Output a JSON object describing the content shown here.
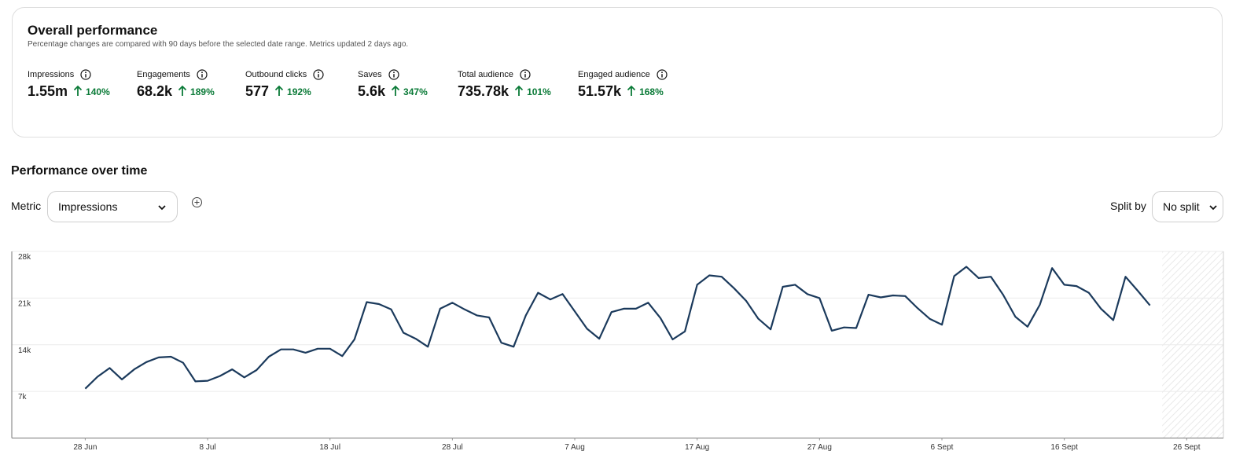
{
  "header": {
    "title": "Overall performance",
    "subtitle": "Percentage changes are compared with 90 days before the selected date range. Metrics updated 2 days ago."
  },
  "metrics": [
    {
      "label": "Impressions",
      "value": "1.55m",
      "change": "140%"
    },
    {
      "label": "Engagements",
      "value": "68.2k",
      "change": "189%"
    },
    {
      "label": "Outbound clicks",
      "value": "577",
      "change": "192%"
    },
    {
      "label": "Saves",
      "value": "5.6k",
      "change": "347%"
    },
    {
      "label": "Total audience",
      "value": "735.78k",
      "change": "101%"
    },
    {
      "label": "Engaged audience",
      "value": "51.57k",
      "change": "168%"
    }
  ],
  "section_title": "Performance over time",
  "controls": {
    "metric_label": "Metric",
    "metric_value": "Impressions",
    "split_label": "Split by",
    "split_value": "No split"
  },
  "chart_data": {
    "type": "line",
    "color": "#1b3a5c",
    "x": [
      "28 Jun",
      "29 Jun",
      "30 Jun",
      "1 Jul",
      "2 Jul",
      "3 Jul",
      "4 Jul",
      "5 Jul",
      "6 Jul",
      "7 Jul",
      "8 Jul",
      "9 Jul",
      "10 Jul",
      "11 Jul",
      "12 Jul",
      "13 Jul",
      "14 Jul",
      "15 Jul",
      "16 Jul",
      "17 Jul",
      "18 Jul",
      "19 Jul",
      "20 Jul",
      "21 Jul",
      "22 Jul",
      "23 Jul",
      "24 Jul",
      "25 Jul",
      "26 Jul",
      "27 Jul",
      "28 Jul",
      "29 Jul",
      "30 Jul",
      "31 Jul",
      "1 Aug",
      "2 Aug",
      "3 Aug",
      "4 Aug",
      "5 Aug",
      "6 Aug",
      "7 Aug",
      "8 Aug",
      "9 Aug",
      "10 Aug",
      "11 Aug",
      "12 Aug",
      "13 Aug",
      "14 Aug",
      "15 Aug",
      "16 Aug",
      "17 Aug",
      "18 Aug",
      "19 Aug",
      "20 Aug",
      "21 Aug",
      "22 Aug",
      "23 Aug",
      "24 Aug",
      "25 Aug",
      "26 Aug",
      "27 Aug",
      "28 Aug",
      "29 Aug",
      "30 Aug",
      "31 Aug",
      "1 Sept",
      "2 Sept",
      "3 Sept",
      "4 Sept",
      "5 Sept",
      "6 Sept",
      "7 Sept",
      "8 Sept",
      "9 Sept",
      "10 Sept",
      "11 Sept",
      "12 Sept",
      "13 Sept",
      "14 Sept",
      "15 Sept",
      "16 Sept",
      "17 Sept",
      "18 Sept",
      "19 Sept",
      "20 Sept",
      "21 Sept",
      "22 Sept",
      "23 Sept"
    ],
    "values": [
      7400,
      9200,
      10500,
      8800,
      10300,
      11400,
      12100,
      12200,
      11300,
      8500,
      8600,
      9300,
      10300,
      9100,
      10200,
      12200,
      13300,
      13300,
      12800,
      13400,
      13400,
      12300,
      14800,
      20400,
      20100,
      19300,
      15800,
      14900,
      13700,
      19400,
      20300,
      19300,
      18400,
      18100,
      14300,
      13700,
      18400,
      21800,
      20800,
      21600,
      19000,
      16400,
      14900,
      18900,
      19400,
      19400,
      20300,
      18000,
      14800,
      16000,
      23000,
      24400,
      24200,
      22500,
      20600,
      17900,
      16300,
      22700,
      23000,
      21600,
      21000,
      16100,
      16600,
      16500,
      21500,
      21100,
      21400,
      21300,
      19500,
      17900,
      17000,
      24300,
      25700,
      24000,
      24200,
      21500,
      18200,
      16700,
      20000,
      25500,
      23000,
      22800,
      21800,
      19400,
      17700,
      24200,
      22100,
      19900
    ],
    "xlim": [
      "22 Jun",
      "29 Sept"
    ],
    "xticks": [
      "28 Jun",
      "8 Jul",
      "18 Jul",
      "28 Jul",
      "7 Aug",
      "17 Aug",
      "27 Aug",
      "6 Sept",
      "16 Sept",
      "26 Sept"
    ],
    "ylim": [
      0,
      28000
    ],
    "yticks": [
      {
        "value": 7000,
        "label": "7k"
      },
      {
        "value": 14000,
        "label": "14k"
      },
      {
        "value": 21000,
        "label": "21k"
      },
      {
        "value": 28000,
        "label": "28k"
      }
    ],
    "grid": true
  }
}
